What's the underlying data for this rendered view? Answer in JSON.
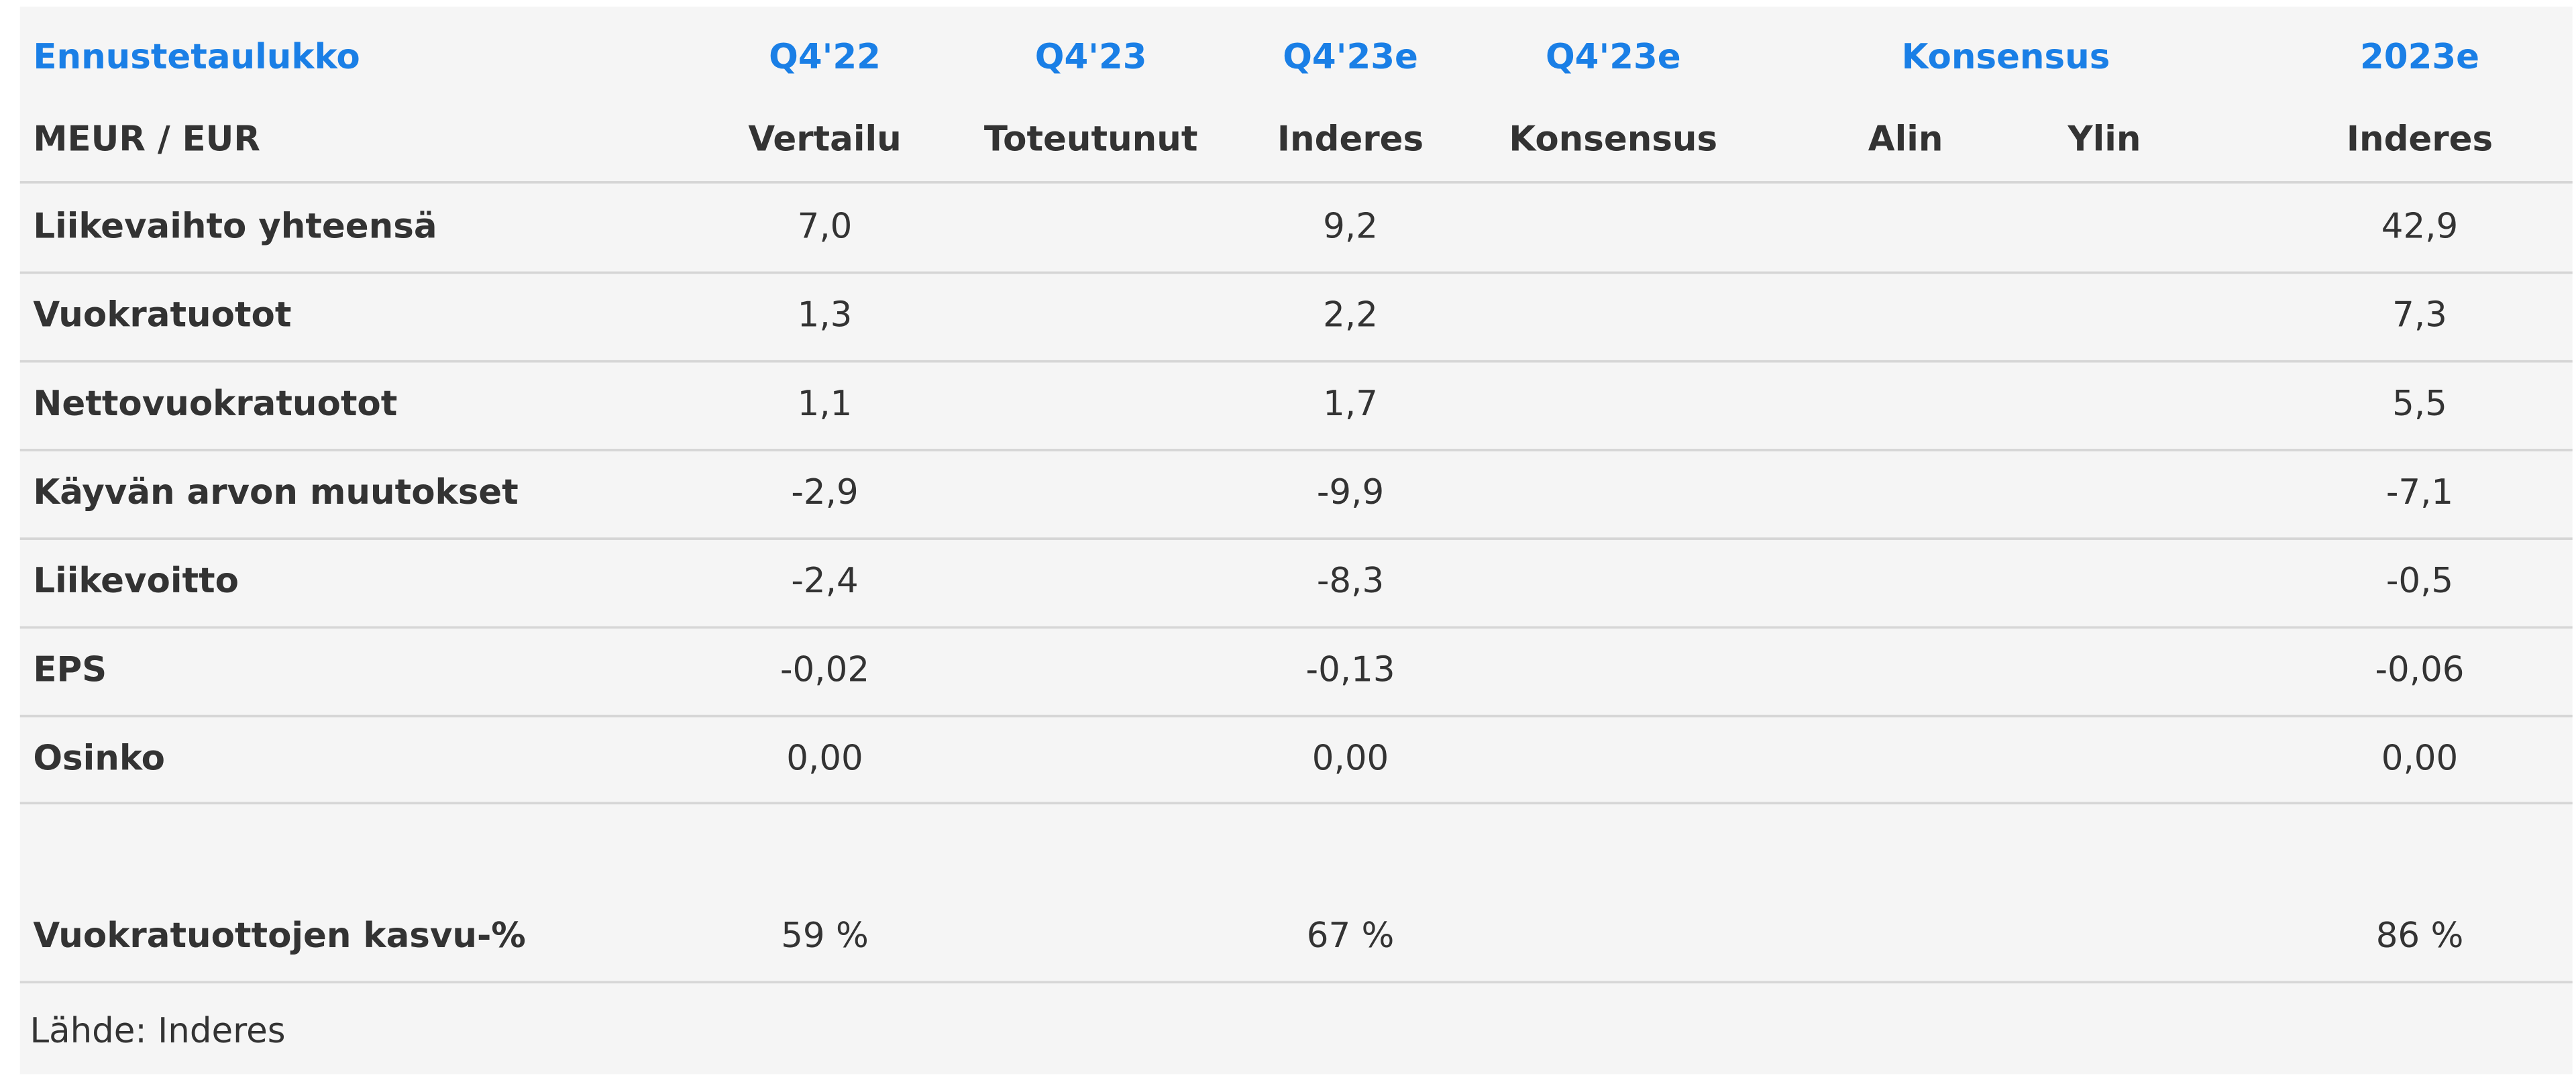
{
  "table": {
    "title": "Ennustetaulukko",
    "header_top": [
      "Q4'22",
      "Q4'23",
      "Q4'23e",
      "Q4'23e",
      "Konsensus",
      "2023e"
    ],
    "unit": "MEUR / EUR",
    "header_bottom": [
      "Vertailu",
      "Toteutunut",
      "Inderes",
      "Konsensus",
      "Alin",
      "Ylin",
      "Inderes"
    ],
    "rows": [
      {
        "label": "Liikevaihto yhteensä",
        "cells": [
          "7,0",
          null,
          "9,2",
          null,
          null,
          null,
          "42,9"
        ]
      },
      {
        "label": "Vuokratuotot",
        "cells": [
          "1,3",
          null,
          "2,2",
          null,
          null,
          null,
          "7,3"
        ]
      },
      {
        "label": "Nettovuokratuotot",
        "cells": [
          "1,1",
          null,
          "1,7",
          null,
          null,
          null,
          "5,5"
        ]
      },
      {
        "label": "Käyvän arvon muutokset",
        "cells": [
          "-2,9",
          null,
          "-9,9",
          null,
          null,
          null,
          "-7,1"
        ]
      },
      {
        "label": "Liikevoitto",
        "cells": [
          "-2,4",
          null,
          "-8,3",
          null,
          null,
          null,
          "-0,5"
        ]
      },
      {
        "label": "EPS",
        "cells": [
          "-0,02",
          null,
          "-0,13",
          null,
          null,
          null,
          "-0,06"
        ]
      },
      {
        "label": "Osinko",
        "cells": [
          "0,00",
          null,
          "0,00",
          null,
          null,
          null,
          "0,00"
        ]
      },
      {
        "label": "Vuokratuottojen kasvu-%",
        "cells": [
          "59 %",
          null,
          "67 %",
          null,
          null,
          null,
          "86 %"
        ]
      }
    ],
    "source": "Lähde: Inderes"
  }
}
